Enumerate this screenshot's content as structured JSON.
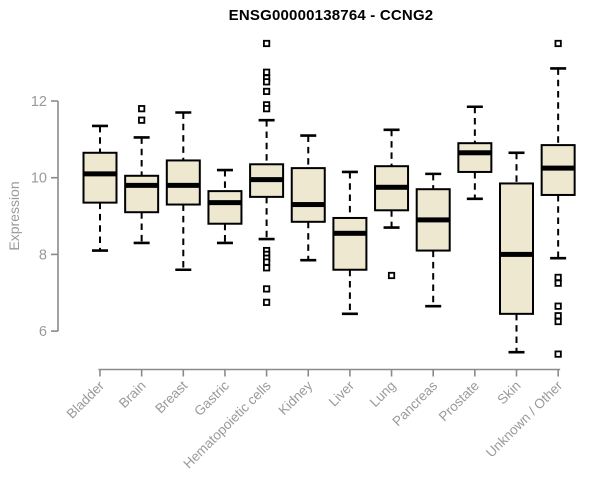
{
  "chart_data": {
    "type": "boxplot",
    "title": "ENSG00000138764 - CCNG2",
    "ylabel": "Expression",
    "xlabel": "",
    "ylim": [
      5.2,
      13.8
    ],
    "yticks": [
      6,
      8,
      10,
      12
    ],
    "grid": false,
    "legend": "none",
    "categories": [
      "Bladder",
      "Brain",
      "Breast",
      "Gastric",
      "Hematopoietic cells",
      "Kidney",
      "Liver",
      "Lung",
      "Pancreas",
      "Prostate",
      "Skin",
      "Unknown / Other"
    ],
    "series": [
      {
        "category": "Bladder",
        "low": 8.1,
        "q1": 9.35,
        "median": 10.1,
        "q3": 10.65,
        "high": 11.35,
        "outliers": []
      },
      {
        "category": "Brain",
        "low": 8.3,
        "q1": 9.1,
        "median": 9.8,
        "q3": 10.05,
        "high": 11.05,
        "outliers": [
          11.5,
          11.8
        ]
      },
      {
        "category": "Breast",
        "low": 7.6,
        "q1": 9.3,
        "median": 9.8,
        "q3": 10.45,
        "high": 11.7,
        "outliers": []
      },
      {
        "category": "Gastric",
        "low": 8.3,
        "q1": 8.8,
        "median": 9.35,
        "q3": 9.65,
        "high": 10.2,
        "outliers": []
      },
      {
        "category": "Hematopoietic cells",
        "low": 8.4,
        "q1": 9.5,
        "median": 9.95,
        "q3": 10.35,
        "high": 11.5,
        "outliers": [
          13.5,
          12.75,
          12.6,
          12.5,
          12.25,
          11.9,
          11.8,
          8.1,
          8.0,
          7.9,
          7.8,
          7.65,
          7.1,
          6.75
        ]
      },
      {
        "category": "Kidney",
        "low": 7.85,
        "q1": 8.85,
        "median": 9.3,
        "q3": 10.25,
        "high": 11.1,
        "outliers": []
      },
      {
        "category": "Liver",
        "low": 6.45,
        "q1": 7.6,
        "median": 8.55,
        "q3": 8.95,
        "high": 10.15,
        "outliers": []
      },
      {
        "category": "Lung",
        "low": 8.7,
        "q1": 9.15,
        "median": 9.75,
        "q3": 10.3,
        "high": 11.25,
        "outliers": [
          7.45
        ]
      },
      {
        "category": "Pancreas",
        "low": 6.65,
        "q1": 8.1,
        "median": 8.9,
        "q3": 9.7,
        "high": 10.1,
        "outliers": []
      },
      {
        "category": "Prostate",
        "low": 9.45,
        "q1": 10.15,
        "median": 10.65,
        "q3": 10.9,
        "high": 11.85,
        "outliers": []
      },
      {
        "category": "Skin",
        "low": 5.45,
        "q1": 6.45,
        "median": 8.0,
        "q3": 9.85,
        "high": 10.65,
        "outliers": []
      },
      {
        "category": "Unknown / Other",
        "low": 7.9,
        "q1": 9.55,
        "median": 10.25,
        "q3": 10.85,
        "high": 12.85,
        "outliers": [
          13.5,
          7.4,
          7.25,
          6.65,
          6.4,
          6.25,
          5.4
        ]
      }
    ],
    "colors": {
      "box_fill": "#EDE8CF",
      "box_border": "#000000",
      "median": "#000000",
      "axis_line": "#8a8a8a",
      "tick_label": "#9a9a9a",
      "title": "#000000",
      "outlier_fill": "#ffffff"
    }
  }
}
